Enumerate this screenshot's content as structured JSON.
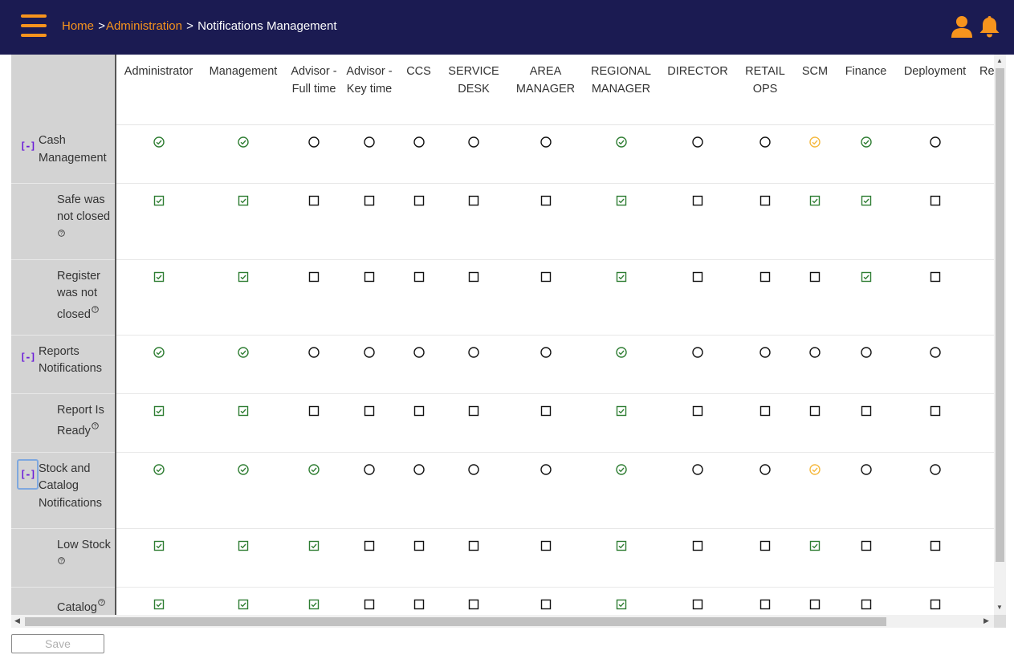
{
  "header": {
    "breadcrumb": {
      "home": "Home",
      "sep1": ">",
      "admin": "Administration",
      "sep2": ">",
      "current": "Notifications Management"
    },
    "icons": [
      "menu-icon",
      "user-icon",
      "bell-icon"
    ],
    "colors": {
      "background": "#1b1b52",
      "accent": "#f7941d"
    }
  },
  "columns": [
    "Administrator",
    "Management",
    "Advisor - Full time",
    "Advisor - Key time",
    "CCS",
    "SERVICE DESK",
    "AREA MANAGER",
    "REGIONAL MANAGER",
    "DIRECTOR",
    "RETAIL OPS",
    "SCM",
    "Finance",
    "Deployment",
    "Re"
  ],
  "rows": [
    {
      "type": "group",
      "label": "Cash Management",
      "toggle": "[-]",
      "states": [
        "checked",
        "checked",
        "empty",
        "empty",
        "empty",
        "empty",
        "empty",
        "checked",
        "empty",
        "empty",
        "partial",
        "checked",
        "empty"
      ]
    },
    {
      "type": "item",
      "label": "Safe was not closed",
      "help": "?",
      "states": [
        "checked",
        "checked",
        "empty",
        "empty",
        "empty",
        "empty",
        "empty",
        "checked",
        "empty",
        "empty",
        "checked",
        "checked",
        "empty"
      ]
    },
    {
      "type": "item",
      "label": "Register was not closed",
      "help": "?",
      "states": [
        "checked",
        "checked",
        "empty",
        "empty",
        "empty",
        "empty",
        "empty",
        "checked",
        "empty",
        "empty",
        "empty",
        "checked",
        "empty"
      ]
    },
    {
      "type": "group",
      "label": "Reports Notifications",
      "toggle": "[-]",
      "states": [
        "checked",
        "checked",
        "empty",
        "empty",
        "empty",
        "empty",
        "empty",
        "checked",
        "empty",
        "empty",
        "empty",
        "empty",
        "empty"
      ]
    },
    {
      "type": "item",
      "label": "Report Is Ready",
      "help": "?",
      "states": [
        "checked",
        "checked",
        "empty",
        "empty",
        "empty",
        "empty",
        "empty",
        "checked",
        "empty",
        "empty",
        "empty",
        "empty",
        "empty"
      ]
    },
    {
      "type": "group",
      "label": "Stock and Catalog Notifications",
      "toggle": "[-]",
      "focused": true,
      "states": [
        "checked",
        "checked",
        "checked",
        "empty",
        "empty",
        "empty",
        "empty",
        "checked",
        "empty",
        "empty",
        "partial",
        "empty",
        "empty"
      ]
    },
    {
      "type": "item",
      "label": "Low Stock",
      "help": "?",
      "states": [
        "checked",
        "checked",
        "checked",
        "empty",
        "empty",
        "empty",
        "empty",
        "checked",
        "empty",
        "empty",
        "checked",
        "empty",
        "empty"
      ]
    },
    {
      "type": "item",
      "label": "Catalog",
      "help": "?",
      "states": [
        "checked",
        "checked",
        "checked",
        "empty",
        "empty",
        "empty",
        "empty",
        "checked",
        "empty",
        "empty",
        "empty",
        "empty",
        "empty"
      ]
    }
  ],
  "footer": {
    "save_label": "Save"
  },
  "colors": {
    "checked": "#2e7d32",
    "partial": "#f5b83d",
    "empty": "#111111",
    "toggle": "#6a1bd8"
  }
}
